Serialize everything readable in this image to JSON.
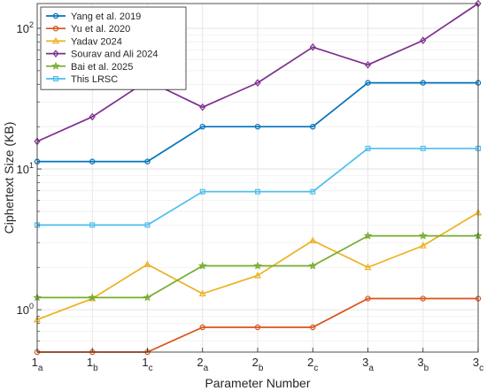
{
  "chart_data": {
    "type": "line",
    "title": "",
    "xlabel": "Parameter Number",
    "ylabel": "Ciphertext Size (KB)",
    "yscale": "log",
    "ylim": [
      0.5,
      150
    ],
    "y_ticks": [
      {
        "base": "10",
        "exp": "0"
      },
      {
        "base": "10",
        "exp": "1"
      },
      {
        "base": "10",
        "exp": "2"
      }
    ],
    "x_ticks": [
      {
        "main": "1",
        "sub": "a"
      },
      {
        "main": "1",
        "sub": "b"
      },
      {
        "main": "1",
        "sub": "c"
      },
      {
        "main": "2",
        "sub": "a"
      },
      {
        "main": "2",
        "sub": "b"
      },
      {
        "main": "2",
        "sub": "c"
      },
      {
        "main": "3",
        "sub": "a"
      },
      {
        "main": "3",
        "sub": "b"
      },
      {
        "main": "3",
        "sub": "c"
      }
    ],
    "grid": true,
    "legend_position": "top-left",
    "series": [
      {
        "name": "Yang et al. 2019",
        "color": "#0072BD",
        "marker": "circle",
        "values": [
          11.3,
          11.3,
          11.3,
          20,
          20,
          20,
          41,
          41,
          41
        ]
      },
      {
        "name": "Yu et al. 2020",
        "color": "#D95319",
        "marker": "circle",
        "values": [
          0.5,
          0.5,
          0.5,
          0.75,
          0.75,
          0.75,
          1.2,
          1.2,
          1.2
        ]
      },
      {
        "name": "Yadav 2024",
        "color": "#EDB120",
        "marker": "triangle",
        "values": [
          0.85,
          1.2,
          2.1,
          1.3,
          1.75,
          3.1,
          2.0,
          2.85,
          4.9
        ]
      },
      {
        "name": "Sourav and Ali 2024",
        "color": "#7E2F8E",
        "marker": "diamond",
        "values": [
          15.7,
          23.5,
          42.5,
          27.5,
          41,
          73.5,
          55,
          82,
          150
        ]
      },
      {
        "name": "Bai et al. 2025",
        "color": "#77AC30",
        "marker": "star",
        "values": [
          1.22,
          1.22,
          1.22,
          2.05,
          2.05,
          2.05,
          3.35,
          3.35,
          3.35
        ]
      },
      {
        "name": "This LRSC",
        "color": "#4DBEEE",
        "marker": "square",
        "values": [
          4.0,
          4.0,
          4.0,
          6.9,
          6.9,
          6.9,
          14,
          14,
          14
        ]
      }
    ]
  }
}
